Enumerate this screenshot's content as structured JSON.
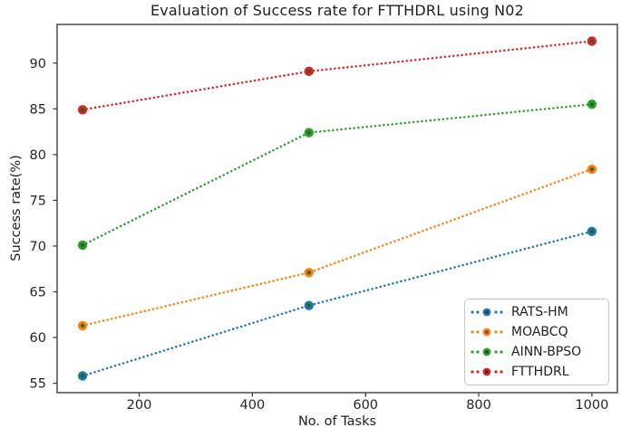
{
  "chart_data": {
    "type": "line",
    "title": "Evaluation of Success rate for FTTHDRL using N02",
    "xlabel": "No. of Tasks",
    "ylabel": "Success rate(%)",
    "x": [
      100,
      500,
      1000
    ],
    "series": [
      {
        "name": "RATS-HM",
        "color": "#1f77b4",
        "values": [
          55.8,
          63.5,
          71.6
        ]
      },
      {
        "name": "MOABCQ",
        "color": "#ff7f0e",
        "values": [
          61.3,
          67.1,
          78.4
        ]
      },
      {
        "name": "AINN-BPSO",
        "color": "#2ca02c",
        "values": [
          70.1,
          82.4,
          85.5
        ]
      },
      {
        "name": "FTTHDRL",
        "color": "#d62728",
        "values": [
          84.9,
          89.1,
          92.4
        ]
      }
    ],
    "xticks": [
      200,
      400,
      600,
      800,
      1000
    ],
    "yticks": [
      55,
      60,
      65,
      70,
      75,
      80,
      85,
      90
    ],
    "xlim": [
      55,
      1045
    ],
    "ylim": [
      53.97,
      94.23
    ],
    "grid": false,
    "line_style": "dotted",
    "marker": "circle",
    "legend_position": "lower right",
    "colors": {
      "axis": "#3f3f3f",
      "tick_text": "#262626",
      "marker_core": "#1d6418"
    }
  }
}
